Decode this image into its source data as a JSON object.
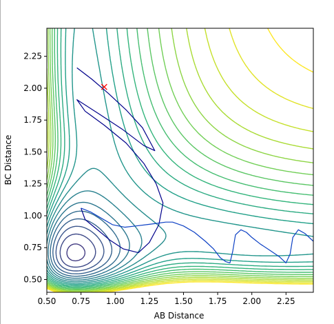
{
  "chart_data": {
    "type": "contour",
    "title": "",
    "xlabel": "AB Distance",
    "ylabel": "BC Distance",
    "xlim": [
      0.5,
      2.45
    ],
    "ylim": [
      0.4,
      2.47
    ],
    "xticks": [
      "0.50",
      "0.75",
      "1.00",
      "1.25",
      "1.50",
      "1.75",
      "2.00",
      "2.25"
    ],
    "yticks": [
      "0.50",
      "0.75",
      "1.00",
      "1.25",
      "1.50",
      "1.75",
      "2.00",
      "2.25"
    ],
    "grid": false,
    "contour_levels": 24,
    "colormap": [
      "#440154",
      "#482878",
      "#3e4a89",
      "#31688e",
      "#26828e",
      "#1f9e89",
      "#35b779",
      "#6ece58",
      "#b5de2b",
      "#fde725"
    ],
    "start_marker": {
      "x": 0.92,
      "y": 2.01,
      "symbol": "x",
      "color": "#ff0000"
    },
    "trajectories": [
      {
        "color": "#00008b",
        "points": [
          [
            0.72,
            2.16
          ],
          [
            0.83,
            2.07
          ],
          [
            0.95,
            1.96
          ],
          [
            1.08,
            1.83
          ],
          [
            1.2,
            1.69
          ],
          [
            1.29,
            1.51
          ],
          [
            1.21,
            1.55
          ],
          [
            1.05,
            1.68
          ],
          [
            0.88,
            1.8
          ],
          [
            0.72,
            1.91
          ],
          [
            0.78,
            1.82
          ],
          [
            0.92,
            1.71
          ],
          [
            1.08,
            1.57
          ],
          [
            1.21,
            1.41
          ],
          [
            1.3,
            1.25
          ],
          [
            1.35,
            1.1
          ],
          [
            1.32,
            0.93
          ],
          [
            1.25,
            0.79
          ],
          [
            1.17,
            0.71
          ],
          [
            1.06,
            0.74
          ],
          [
            0.96,
            0.81
          ],
          [
            0.86,
            0.9
          ],
          [
            0.78,
            0.97
          ],
          [
            0.75,
            1.06
          ]
        ]
      },
      {
        "color": "#0b3fc4",
        "points": [
          [
            0.75,
            1.06
          ],
          [
            0.82,
            1.03
          ],
          [
            0.9,
            0.98
          ],
          [
            0.98,
            0.93
          ],
          [
            1.07,
            0.91
          ],
          [
            1.15,
            0.92
          ],
          [
            1.23,
            0.93
          ],
          [
            1.3,
            0.94
          ],
          [
            1.37,
            0.95
          ],
          [
            1.42,
            0.95
          ],
          [
            1.5,
            0.92
          ],
          [
            1.58,
            0.87
          ],
          [
            1.66,
            0.8
          ],
          [
            1.72,
            0.74
          ],
          [
            1.77,
            0.67
          ],
          [
            1.81,
            0.64
          ],
          [
            1.84,
            0.63
          ],
          [
            1.86,
            0.72
          ],
          [
            1.88,
            0.85
          ],
          [
            1.92,
            0.89
          ],
          [
            1.96,
            0.87
          ],
          [
            2.0,
            0.83
          ],
          [
            2.06,
            0.78
          ],
          [
            2.13,
            0.73
          ],
          [
            2.2,
            0.68
          ],
          [
            2.25,
            0.63
          ],
          [
            2.28,
            0.7
          ],
          [
            2.3,
            0.83
          ],
          [
            2.34,
            0.89
          ],
          [
            2.39,
            0.86
          ],
          [
            2.45,
            0.8
          ]
        ]
      }
    ]
  }
}
